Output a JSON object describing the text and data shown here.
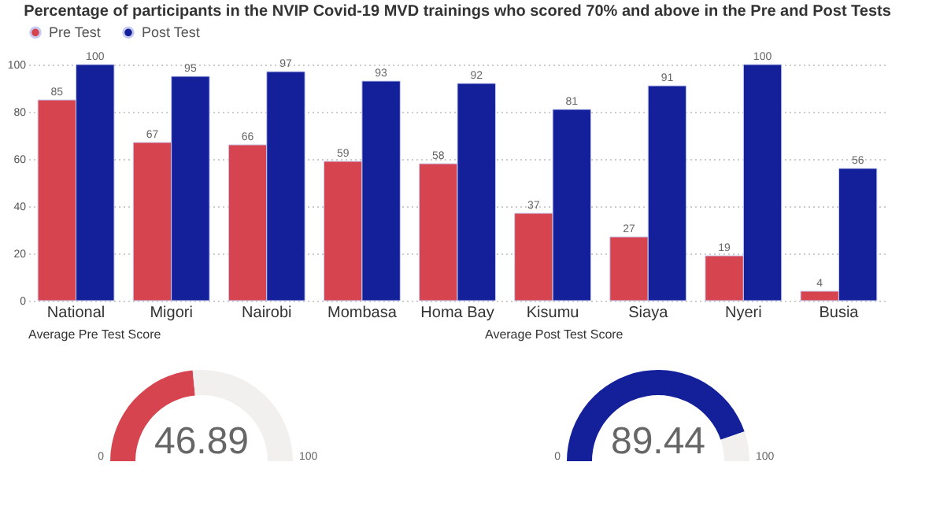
{
  "chart_data": [
    {
      "type": "bar",
      "title": "Percentage of participants in the NVIP Covid-19 MVD trainings who scored 70% and above in the Pre and Post Tests",
      "categories": [
        "National",
        "Migori",
        "Nairobi",
        "Mombasa",
        "Homa Bay",
        "Kisumu",
        "Siaya",
        "Nyeri",
        "Busia"
      ],
      "series": [
        {
          "name": "Pre Test",
          "color": "#d6444f",
          "values": [
            85,
            67,
            66,
            59,
            58,
            37,
            27,
            19,
            4
          ]
        },
        {
          "name": "Post Test",
          "color": "#13209a",
          "values": [
            100,
            95,
            97,
            93,
            92,
            81,
            91,
            100,
            56
          ]
        }
      ],
      "ylim": [
        0,
        100
      ],
      "yticks": [
        0,
        20,
        40,
        60,
        80,
        100
      ],
      "grid": "y",
      "legend": "top left",
      "data_labels": true
    },
    {
      "type": "donut",
      "title": "Average Pre Test Score",
      "categories": [
        null,
        null
      ],
      "values": [
        46.89,
        53.11
      ],
      "colors": [
        "#d6444f",
        "#f1f0ee"
      ],
      "value_labels": [
        "46.89",
        null
      ],
      "annotations": [
        "0",
        "100"
      ]
    },
    {
      "type": "donut",
      "title": "Average Post Test Score",
      "categories": [
        null,
        null
      ],
      "values": [
        89.44,
        10.56
      ],
      "colors": [
        "#13209a",
        "#f1f0ee"
      ],
      "value_labels": [
        "89.44",
        null
      ],
      "annotations": [
        "0",
        "100"
      ]
    }
  ]
}
